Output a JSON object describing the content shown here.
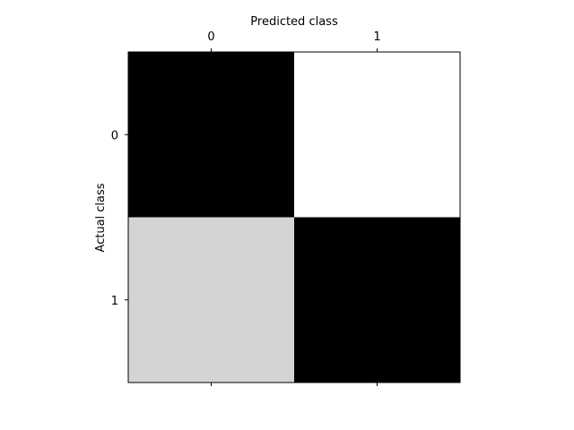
{
  "chart_data": {
    "type": "heatmap",
    "title": "",
    "xlabel": "Predicted class",
    "ylabel": "Actual class",
    "x_categories": [
      "0",
      "1"
    ],
    "y_categories": [
      "0",
      "1"
    ],
    "x_axis_position": "top",
    "colormap": "gray",
    "values": [
      [
        1.0,
        0.0
      ],
      [
        0.17,
        1.0
      ]
    ],
    "value_range": [
      0,
      1
    ],
    "grid": false,
    "colors": {
      "frame": "#000000",
      "background": "#ffffff"
    }
  }
}
